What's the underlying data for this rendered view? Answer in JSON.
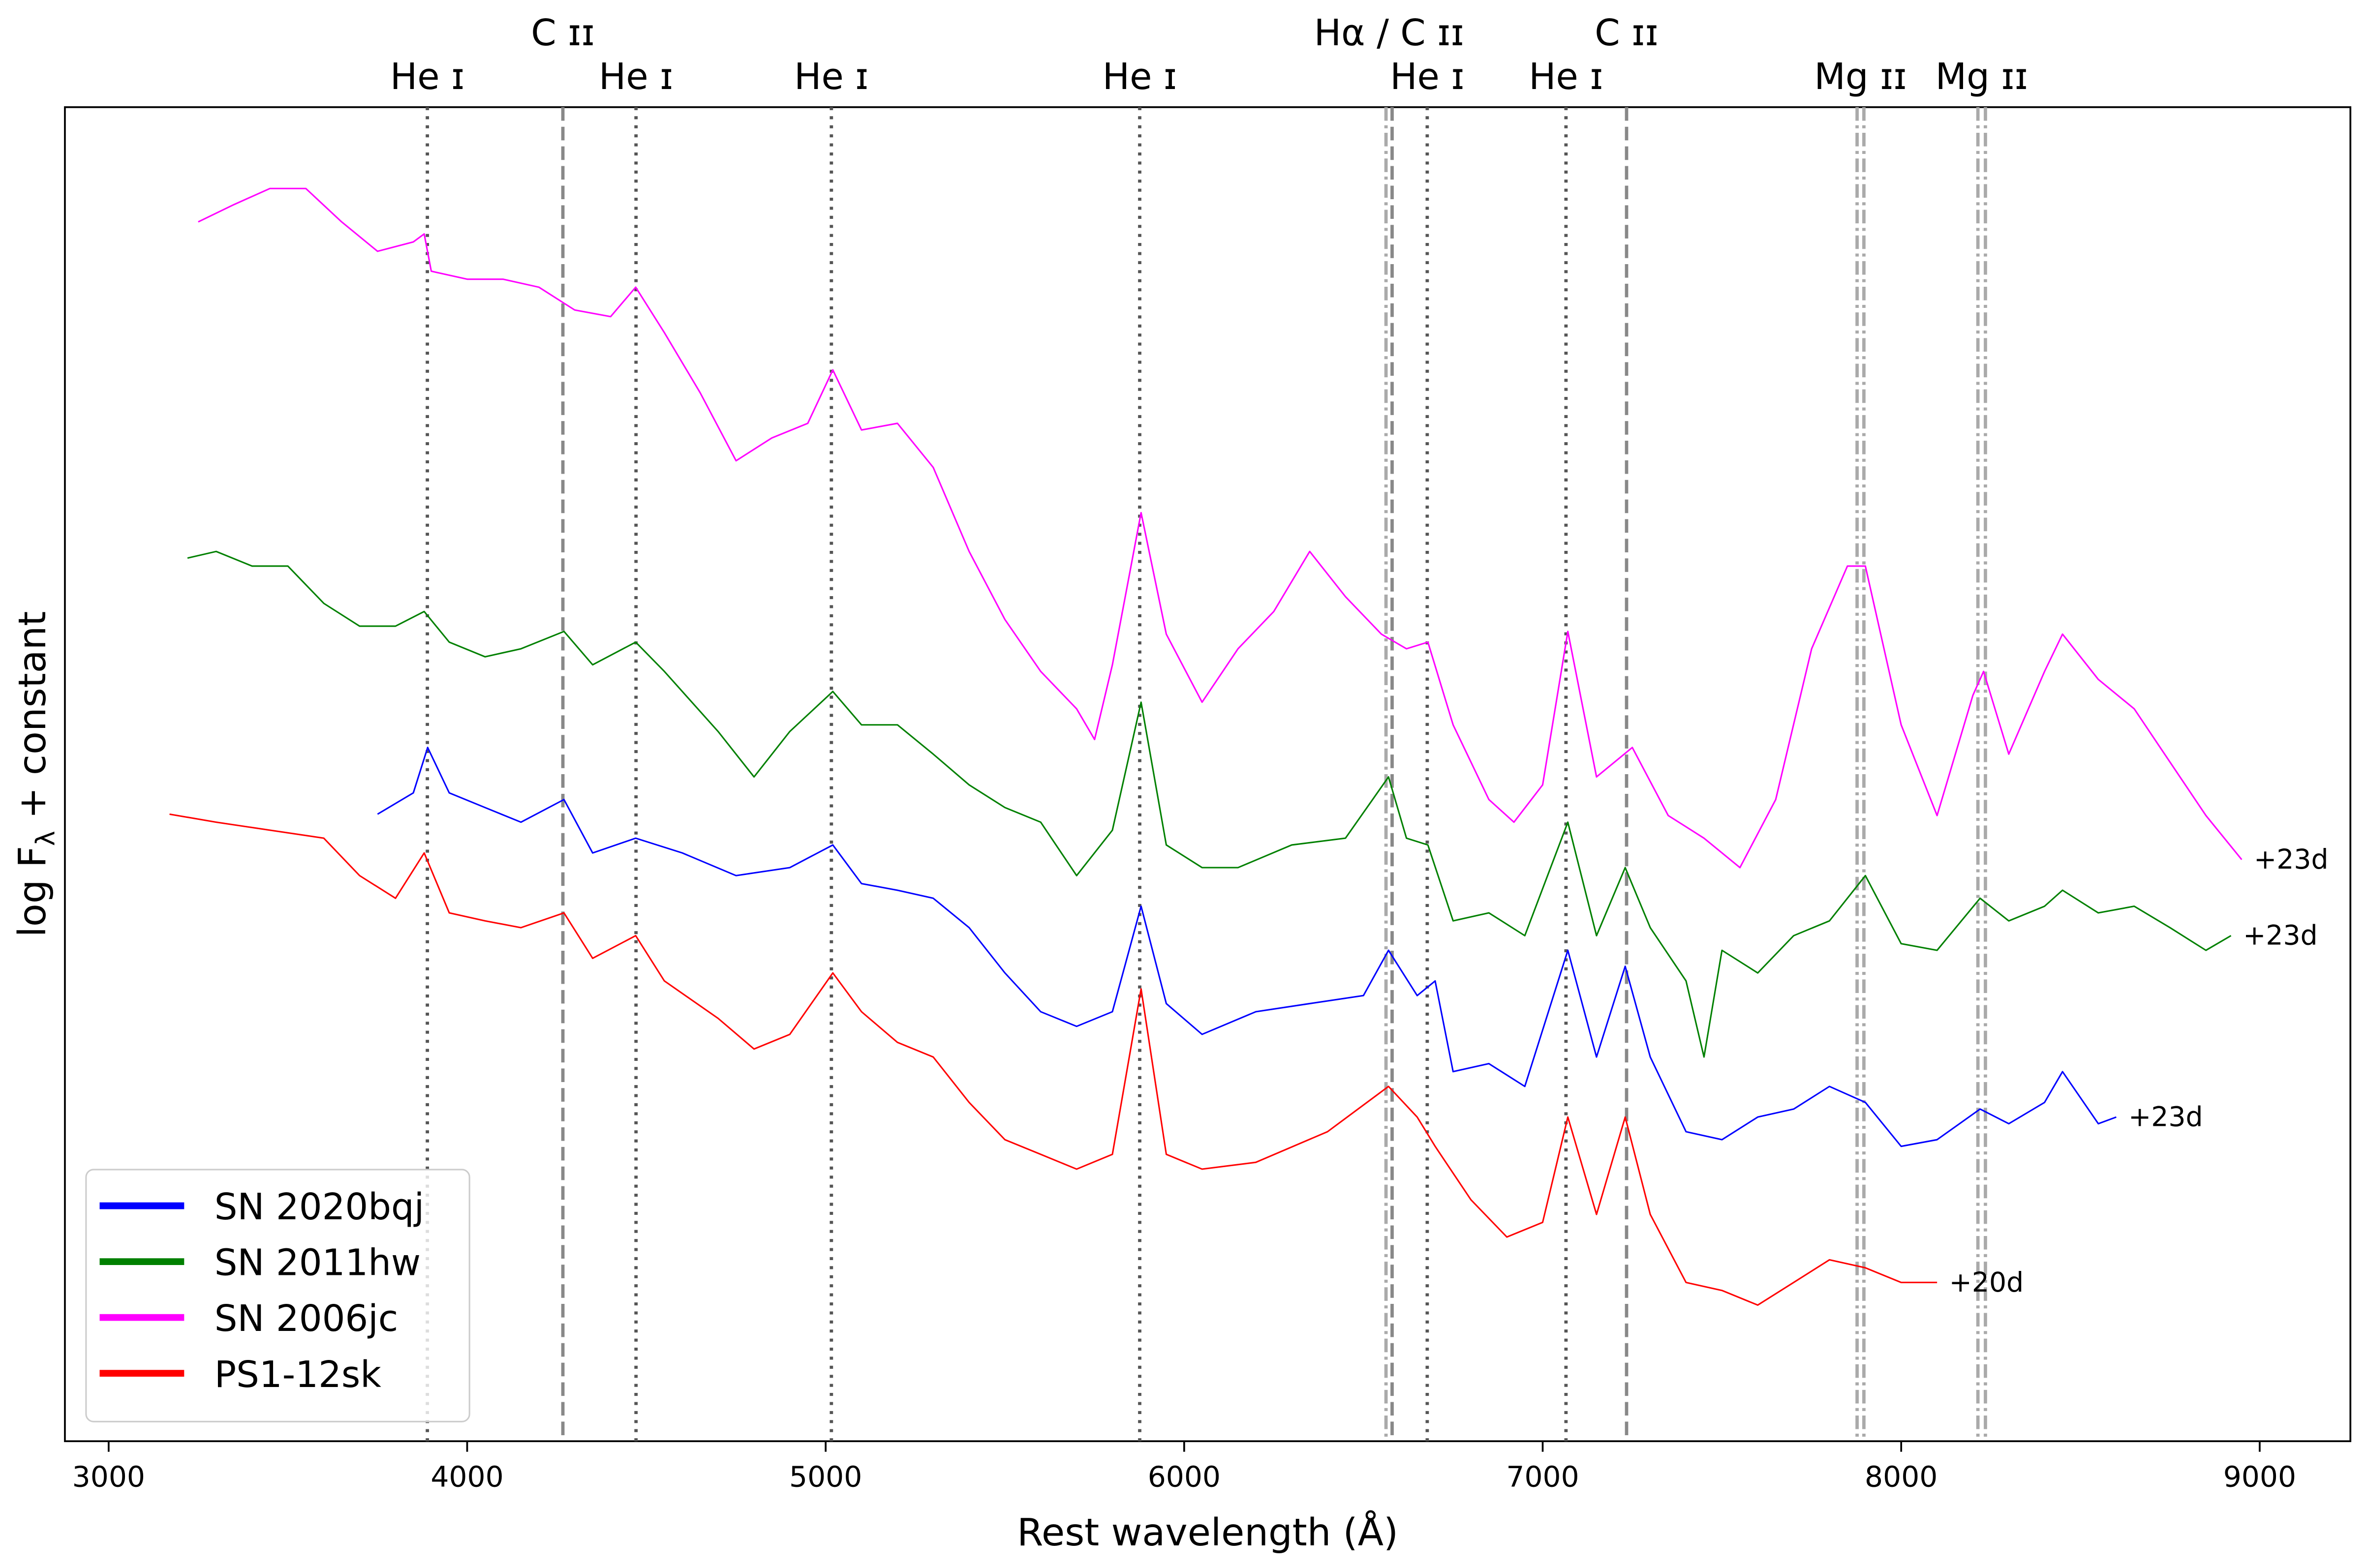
{
  "chart_data": {
    "type": "line",
    "xlabel": "Rest wavelength (Å)",
    "ylabel": [
      "log F",
      "λ",
      " + constant"
    ],
    "xlim": [
      2878,
      9253
    ],
    "xticks": [
      3000,
      4000,
      5000,
      6000,
      7000,
      8000,
      9000
    ],
    "ylim": [
      0,
      100
    ],
    "legend": "lower left",
    "upper_line_ids": [
      {
        "label": "C ɪɪ",
        "wavelengths": [
          4267
        ],
        "styles": [
          "dashed"
        ]
      },
      {
        "label": "Hα / C ɪɪ",
        "wavelengths": [
          6563,
          6580
        ],
        "styles": [
          "dashdot",
          "dashed"
        ]
      },
      {
        "label": "C ɪɪ",
        "wavelengths": [
          7234
        ],
        "styles": [
          "dashed"
        ]
      }
    ],
    "lower_line_ids": [
      {
        "label": "He ɪ",
        "wavelengths": [
          3889
        ],
        "styles": [
          "dotted"
        ]
      },
      {
        "label": "He ɪ",
        "wavelengths": [
          4471
        ],
        "styles": [
          "dotted"
        ]
      },
      {
        "label": "He ɪ",
        "wavelengths": [
          5016
        ],
        "styles": [
          "dotted"
        ]
      },
      {
        "label": "He ɪ",
        "wavelengths": [
          5876
        ],
        "styles": [
          "dotted"
        ]
      },
      {
        "label": "He ɪ",
        "wavelengths": [
          6678
        ],
        "styles": [
          "dotted"
        ]
      },
      {
        "label": "He ɪ",
        "wavelengths": [
          7065
        ],
        "styles": [
          "dotted"
        ]
      },
      {
        "label": "Mg ɪɪ",
        "wavelengths": [
          7877,
          7896
        ],
        "styles": [
          "dashdot",
          "dashdot"
        ]
      },
      {
        "label": "Mg ɪɪ",
        "wavelengths": [
          8214,
          8235
        ],
        "styles": [
          "dashdot",
          "dashdot"
        ]
      }
    ],
    "series": [
      {
        "name": "SN 2020bqj",
        "color": "#0000ff",
        "phase": "+23d",
        "x": [
          3750,
          3850,
          3890,
          3950,
          4050,
          4150,
          4270,
          4350,
          4470,
          4600,
          4750,
          4900,
          5020,
          5100,
          5200,
          5300,
          5400,
          5500,
          5600,
          5700,
          5800,
          5880,
          5950,
          6050,
          6200,
          6350,
          6500,
          6570,
          6650,
          6700,
          6750,
          6850,
          6950,
          7070,
          7150,
          7230,
          7300,
          7400,
          7500,
          7600,
          7700,
          7800,
          7900,
          8000,
          8100,
          8220,
          8300,
          8400,
          8450,
          8550,
          8600
        ],
        "values": [
          47.0,
          48.6,
          52.0,
          48.6,
          47.5,
          46.4,
          48.1,
          44.1,
          45.2,
          44.1,
          42.4,
          43.0,
          44.7,
          41.8,
          41.3,
          40.7,
          38.5,
          35.1,
          32.2,
          31.1,
          32.2,
          40.1,
          32.8,
          30.5,
          32.2,
          32.8,
          33.4,
          36.8,
          33.4,
          34.5,
          27.7,
          28.3,
          26.6,
          36.8,
          28.8,
          35.6,
          28.8,
          23.2,
          22.6,
          24.3,
          24.9,
          26.6,
          25.4,
          22.1,
          22.6,
          24.9,
          23.8,
          25.4,
          27.7,
          23.8,
          24.3
        ]
      },
      {
        "name": "SN 2011hw",
        "color": "#008000",
        "phase": "+23d",
        "x": [
          3220,
          3300,
          3400,
          3500,
          3600,
          3700,
          3800,
          3880,
          3950,
          4050,
          4150,
          4270,
          4350,
          4470,
          4550,
          4700,
          4800,
          4900,
          5020,
          5100,
          5200,
          5300,
          5400,
          5500,
          5600,
          5700,
          5800,
          5880,
          5950,
          6050,
          6150,
          6300,
          6450,
          6570,
          6620,
          6680,
          6750,
          6850,
          6950,
          7070,
          7150,
          7230,
          7300,
          7400,
          7450,
          7500,
          7600,
          7700,
          7800,
          7900,
          8000,
          8100,
          8220,
          8300,
          8400,
          8450,
          8550,
          8650,
          8750,
          8850,
          8920
        ],
        "values": [
          66.2,
          66.7,
          65.6,
          65.6,
          62.8,
          61.1,
          61.1,
          62.2,
          59.9,
          58.8,
          59.4,
          60.7,
          58.2,
          59.9,
          57.7,
          53.2,
          49.8,
          53.2,
          56.2,
          53.7,
          53.7,
          51.5,
          49.2,
          47.5,
          46.4,
          42.4,
          45.8,
          55.4,
          44.7,
          43.0,
          43.0,
          44.7,
          45.2,
          49.8,
          45.2,
          44.7,
          39.0,
          39.6,
          37.9,
          46.4,
          37.9,
          43.0,
          38.5,
          34.5,
          28.8,
          36.8,
          35.1,
          37.9,
          39.0,
          42.4,
          37.3,
          36.8,
          40.7,
          39.0,
          40.1,
          41.3,
          39.6,
          40.1,
          38.5,
          36.8,
          37.9
        ]
      },
      {
        "name": "SN 2006jc",
        "color": "#ff00ff",
        "phase": "+23d",
        "x": [
          3250,
          3350,
          3450,
          3550,
          3650,
          3750,
          3850,
          3880,
          3900,
          4000,
          4100,
          4200,
          4300,
          4400,
          4470,
          4550,
          4650,
          4750,
          4850,
          4950,
          5020,
          5100,
          5200,
          5300,
          5400,
          5500,
          5600,
          5700,
          5750,
          5800,
          5880,
          5950,
          6050,
          6150,
          6250,
          6350,
          6450,
          6550,
          6620,
          6680,
          6750,
          6850,
          6920,
          7000,
          7070,
          7150,
          7250,
          7350,
          7450,
          7550,
          7650,
          7750,
          7850,
          7900,
          8000,
          8100,
          8200,
          8230,
          8300,
          8400,
          8450,
          8550,
          8650,
          8750,
          8850,
          8950
        ],
        "values": [
          91.4,
          92.7,
          93.9,
          93.9,
          91.4,
          89.2,
          89.9,
          90.5,
          87.7,
          87.1,
          87.1,
          86.5,
          84.8,
          84.3,
          86.5,
          83.1,
          78.6,
          73.5,
          75.2,
          76.3,
          80.3,
          75.8,
          76.3,
          73.0,
          66.7,
          61.6,
          57.7,
          54.9,
          52.6,
          58.2,
          69.6,
          60.5,
          55.4,
          59.4,
          62.2,
          66.7,
          63.3,
          60.5,
          59.4,
          59.9,
          53.7,
          48.1,
          46.4,
          49.2,
          60.7,
          49.8,
          52.0,
          46.9,
          45.2,
          43.0,
          48.1,
          59.4,
          65.6,
          65.6,
          53.7,
          46.9,
          55.9,
          57.7,
          51.5,
          57.7,
          60.5,
          57.1,
          54.9,
          50.9,
          46.9,
          43.6
        ]
      },
      {
        "name": "PS1-12sk",
        "color": "#ff0000",
        "phase": "+20d",
        "x": [
          3170,
          3300,
          3450,
          3600,
          3700,
          3800,
          3880,
          3950,
          4050,
          4150,
          4270,
          4350,
          4470,
          4550,
          4700,
          4800,
          4900,
          5020,
          5100,
          5200,
          5300,
          5400,
          5500,
          5600,
          5700,
          5800,
          5880,
          5950,
          6050,
          6200,
          6400,
          6570,
          6650,
          6700,
          6800,
          6900,
          7000,
          7070,
          7150,
          7230,
          7300,
          7400,
          7500,
          7600,
          7700,
          7800,
          7900,
          8000,
          8100
        ],
        "values": [
          47.0,
          46.4,
          45.8,
          45.2,
          42.4,
          40.7,
          44.1,
          39.6,
          39.0,
          38.5,
          39.6,
          36.2,
          37.9,
          34.5,
          31.7,
          29.4,
          30.5,
          35.1,
          32.2,
          29.9,
          28.8,
          25.4,
          22.6,
          21.5,
          20.4,
          21.5,
          33.9,
          21.5,
          20.4,
          20.9,
          23.2,
          26.6,
          24.3,
          22.1,
          18.1,
          15.3,
          16.4,
          24.3,
          17.0,
          24.3,
          17.0,
          11.9,
          11.3,
          10.2,
          11.9,
          13.6,
          13.0,
          11.9,
          11.9
        ]
      }
    ]
  }
}
